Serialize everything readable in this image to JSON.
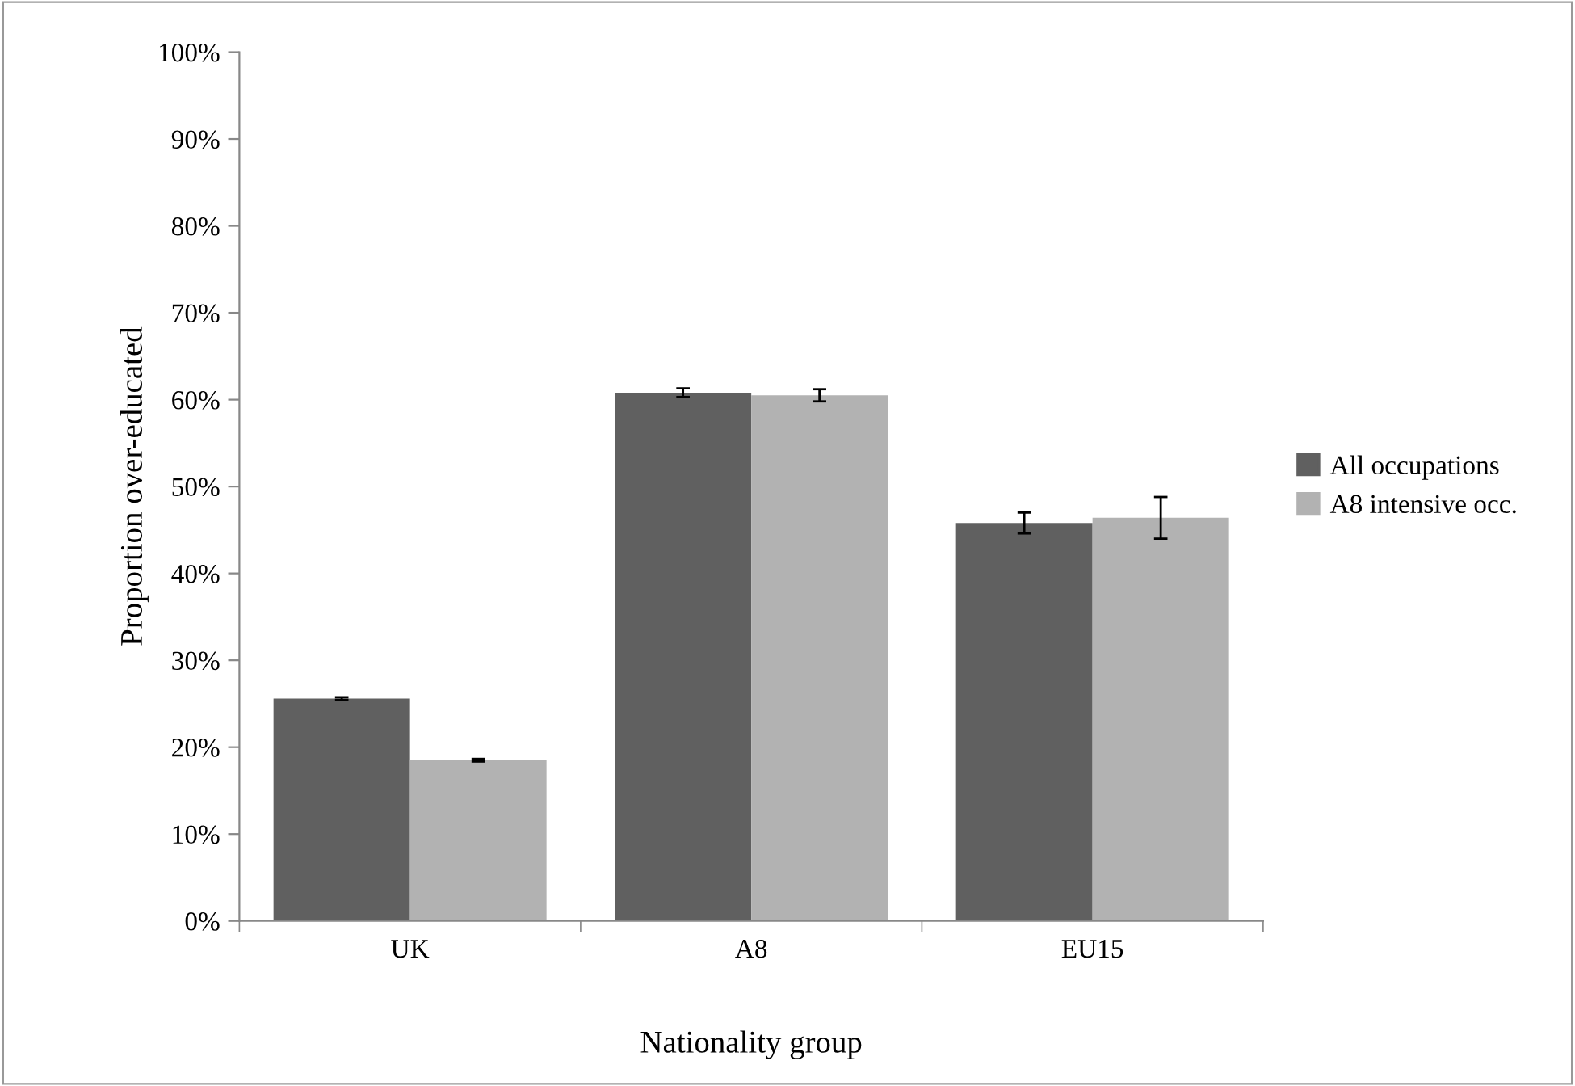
{
  "chart_data": {
    "type": "bar",
    "xlabel": "Nationality group",
    "ylabel": "Proportion over-educated",
    "categories": [
      "UK",
      "A8",
      "EU15"
    ],
    "series": [
      {
        "name": "All occupations",
        "color": "#606060",
        "values": [
          25.6,
          60.8,
          45.8
        ],
        "errors": [
          0.15,
          0.5,
          1.2
        ]
      },
      {
        "name": "A8 intensive occ.",
        "color": "#b2b2b2",
        "values": [
          18.5,
          60.5,
          46.4
        ],
        "errors": [
          0.15,
          0.7,
          2.4
        ]
      }
    ],
    "ylim": [
      0,
      100
    ],
    "yticks": [
      {
        "value": 0,
        "label": "0%"
      },
      {
        "value": 10,
        "label": "10%"
      },
      {
        "value": 20,
        "label": "20%"
      },
      {
        "value": 30,
        "label": "30%"
      },
      {
        "value": 40,
        "label": "40%"
      },
      {
        "value": 50,
        "label": "50%"
      },
      {
        "value": 60,
        "label": "60%"
      },
      {
        "value": 70,
        "label": "70%"
      },
      {
        "value": 80,
        "label": "80%"
      },
      {
        "value": 90,
        "label": "90%"
      },
      {
        "value": 100,
        "label": "100%"
      }
    ],
    "grid": false,
    "legend": "right"
  }
}
